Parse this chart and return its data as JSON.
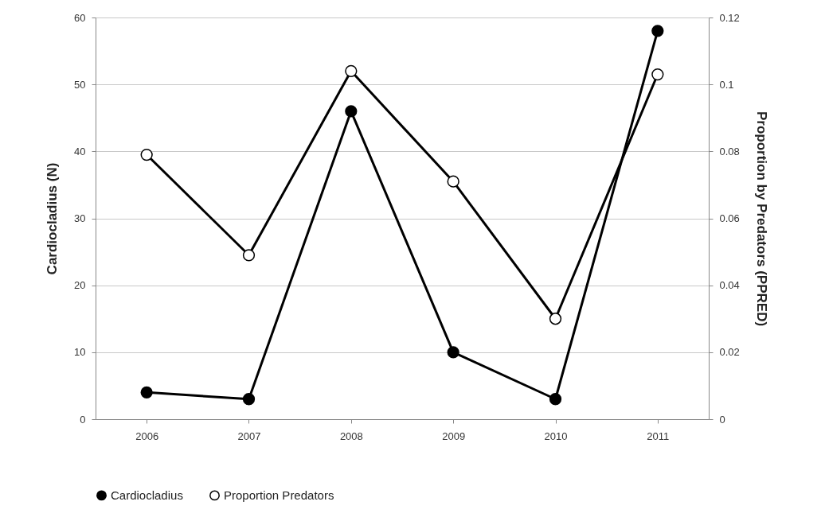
{
  "chart_data": {
    "type": "line",
    "categories": [
      "2006",
      "2007",
      "2008",
      "2009",
      "2010",
      "2011"
    ],
    "ylabel": "Cardiocladius (N)",
    "y2label": "Proportion by Predators (PPRED)",
    "series": [
      {
        "name": "Cardiocladius",
        "color": "#000000",
        "values": [
          4,
          3,
          46,
          10,
          3,
          58
        ]
      },
      {
        "name": "Proportion Predators",
        "color": "#000000",
        "axis": "y2",
        "values": [
          0.079,
          0.049,
          0.104,
          0.071,
          0.03,
          0.103
        ]
      }
    ],
    "ylim": [
      0,
      60
    ],
    "yticks": [
      0,
      10,
      20,
      30,
      40,
      50,
      60
    ],
    "y2lim": [
      0,
      0.12
    ],
    "y2ticks": [
      0,
      0.02,
      0.04,
      0.06,
      0.08,
      0.1,
      0.12
    ],
    "grid": "y",
    "legend": "bottom",
    "marker": "circle",
    "line_style": "solid"
  }
}
